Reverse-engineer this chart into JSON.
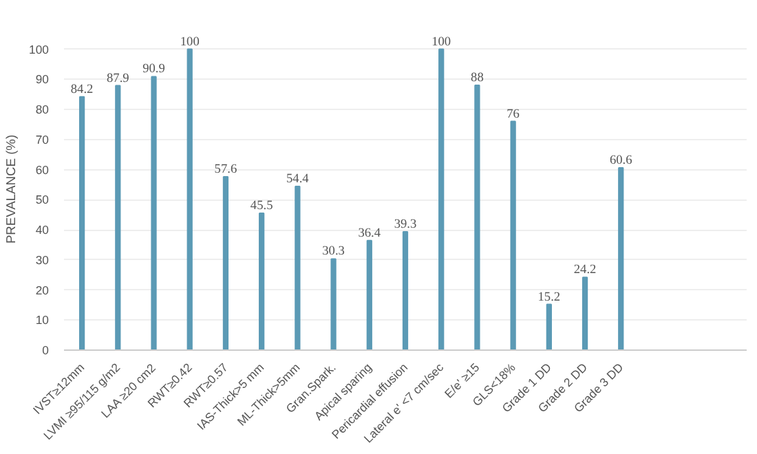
{
  "chart_data": {
    "type": "bar",
    "ylabel": "PREVALANCE (%)",
    "categories": [
      "IVST≥12mm",
      "LVMI ≥95/115 g/m2",
      "LAA ≥20 cm2",
      "RWT≥0.42",
      "RWT≥0.57",
      "IAS-Thick>5 mm",
      "ML-Thick>5mm",
      "Gran.Spark.",
      "Apical sparing",
      "Pericardial effusion",
      "Lateral e' <7 cm/sec",
      "E/e' ≥15",
      "GLS<18%",
      "Grade 1 DD",
      "Grade 2 DD",
      "Grade 3 DD"
    ],
    "values": [
      84.2,
      87.9,
      90.9,
      100,
      57.6,
      45.5,
      54.4,
      30.3,
      36.4,
      39.3,
      100,
      88,
      76,
      15.2,
      24.2,
      60.6
    ],
    "color": "#5b9ab5",
    "ylim": [
      0,
      100
    ],
    "yticks": [
      0,
      10,
      20,
      30,
      40,
      50,
      60,
      70,
      80,
      90,
      100
    ],
    "grid": "y",
    "data_labels": true
  }
}
